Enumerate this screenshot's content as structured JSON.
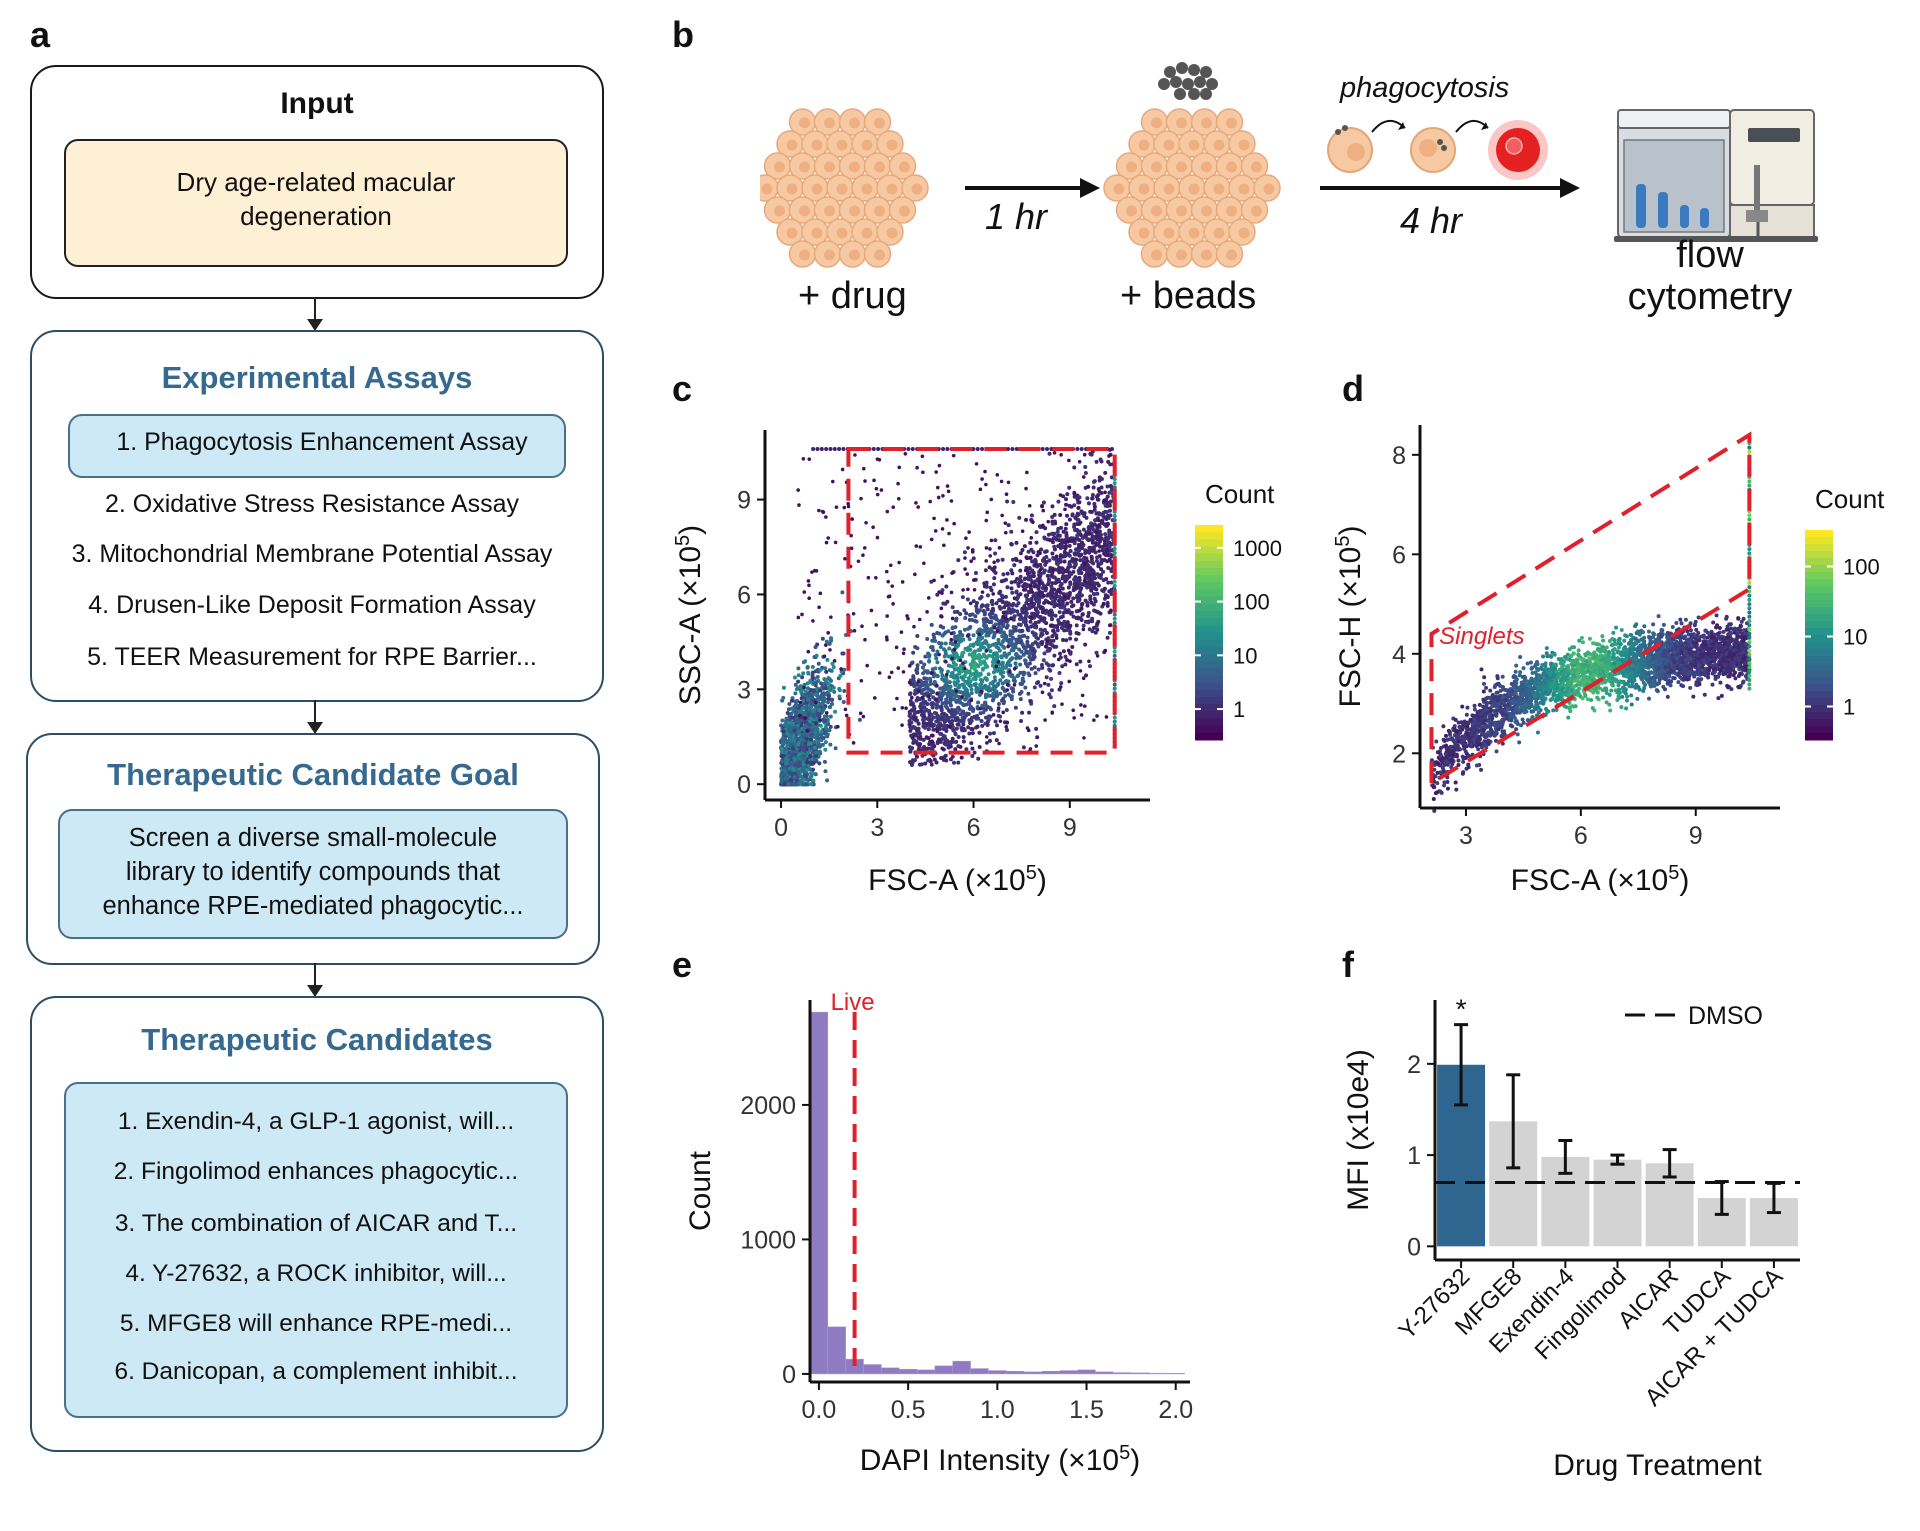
{
  "panel_letters": [
    "a",
    "b",
    "c",
    "d",
    "e",
    "f"
  ],
  "panel_a": {
    "input": {
      "title": "Input",
      "text_line1": "Dry age-related macular",
      "text_line2": "degeneration"
    },
    "assays": {
      "title": "Experimental Assays",
      "items": [
        "1. Phagocytosis Enhancement Assay",
        "2. Oxidative Stress Resistance Assay",
        "3. Mitochondrial Membrane Potential Assay",
        "4. Drusen-Like Deposit Formation Assay",
        "5. TEER Measurement for RPE Barrier..."
      ]
    },
    "goal": {
      "title": "Therapeutic Candidate Goal",
      "line1": "Screen a diverse small-molecule",
      "line2": "library to identify compounds that",
      "line3": "enhance RPE-mediated phagocytic..."
    },
    "candidates": {
      "title": "Therapeutic Candidates",
      "items": [
        "1. Exendin-4, a GLP-1 agonist, will...",
        "2. Fingolimod enhances phagocytic...",
        "3. The combination of AICAR and T...",
        "4. Y-27632, a ROCK inhibitor, will...",
        "5. MFGE8 will enhance RPE-medi...",
        "6. Danicopan, a complement inhibit..."
      ]
    }
  },
  "panel_b": {
    "step1": "+ drug",
    "step2": "+ beads",
    "time1": "1 hr",
    "time2": "4 hr",
    "process": "phagocytosis",
    "end_line1": "flow",
    "end_line2": "cytometry"
  },
  "colors": {
    "cell_fill": "#f7c9a2",
    "gate_red": "#e0202a",
    "title_blue": "#36698f",
    "hist_purple": "#8f7bc2",
    "bar_highlight": "#2f6690",
    "bar_gray": "#d3d3d3"
  },
  "chart_data": [
    {
      "panel": "c",
      "type": "heatmap",
      "xlabel": "FSC-A (×10⁵)",
      "ylabel": "SSC-A (×10⁵)",
      "xticks": [
        0,
        3,
        6,
        9
      ],
      "yticks": [
        0,
        3,
        6,
        9
      ],
      "xlim": [
        -0.5,
        11.5
      ],
      "ylim": [
        -0.5,
        11.2
      ],
      "legend_title": "Count",
      "legend_ticks": [
        "1000",
        "100",
        "10",
        "1"
      ],
      "gate": {
        "x": [
          2.1,
          10.4
        ],
        "y": [
          1.0,
          10.6
        ]
      }
    },
    {
      "panel": "d",
      "type": "heatmap",
      "xlabel": "FSC-A (×10⁵)",
      "ylabel": "FSC-H (×10⁵)",
      "xticks": [
        3,
        6,
        9
      ],
      "yticks": [
        2,
        4,
        6,
        8
      ],
      "xlim": [
        1.8,
        11.2
      ],
      "ylim": [
        0.9,
        8.6
      ],
      "legend_title": "Count",
      "legend_ticks": [
        "100",
        "10",
        "1"
      ],
      "gate_label": "Singlets",
      "gate": {
        "x": [
          2.1,
          2.1,
          10.4,
          10.4
        ],
        "y": [
          1.4,
          4.4,
          8.4,
          5.3
        ]
      }
    },
    {
      "panel": "e",
      "type": "bar",
      "xlabel": "DAPI Intensity (×10⁵)",
      "ylabel": "Count",
      "xticks": [
        "0.0",
        "0.5",
        "1.0",
        "1.5",
        "2.0"
      ],
      "yticks": [
        0,
        1000,
        2000
      ],
      "xlim": [
        -0.05,
        2.08
      ],
      "ylim": [
        -60,
        2780
      ],
      "bin_width": 0.1,
      "bins_start": [
        -0.05,
        0.05,
        0.15,
        0.25,
        0.35,
        0.45,
        0.55,
        0.65,
        0.75,
        0.85,
        0.95,
        1.05,
        1.15,
        1.25,
        1.35,
        1.45,
        1.55,
        1.65,
        1.75,
        1.85,
        1.95
      ],
      "counts": [
        2690,
        350,
        110,
        70,
        45,
        35,
        30,
        60,
        95,
        40,
        25,
        20,
        15,
        20,
        25,
        30,
        15,
        10,
        8,
        6,
        5
      ],
      "gate_x": 0.2,
      "gate_label": "Live"
    },
    {
      "panel": "f",
      "type": "bar",
      "xlabel": "Drug Treatment",
      "ylabel": "MFI (x10e4)",
      "categories": [
        "Y-27632",
        "MFGE8",
        "Exendin-4",
        "Fingolimod",
        "AICAR",
        "TUDCA",
        "AICAR + TUDCA"
      ],
      "values": [
        1.99,
        1.37,
        0.98,
        0.95,
        0.91,
        0.53,
        0.53
      ],
      "err": [
        0.44,
        0.51,
        0.18,
        0.05,
        0.15,
        0.18,
        0.16
      ],
      "highlight": [
        true,
        false,
        false,
        false,
        false,
        false,
        false
      ],
      "significance": [
        "*",
        "",
        "",
        "",
        "",
        "",
        ""
      ],
      "reference_line": {
        "name": "DMSO",
        "value": 0.7
      },
      "yticks": [
        0,
        1,
        2
      ],
      "ylim": [
        -0.15,
        2.7
      ]
    }
  ]
}
